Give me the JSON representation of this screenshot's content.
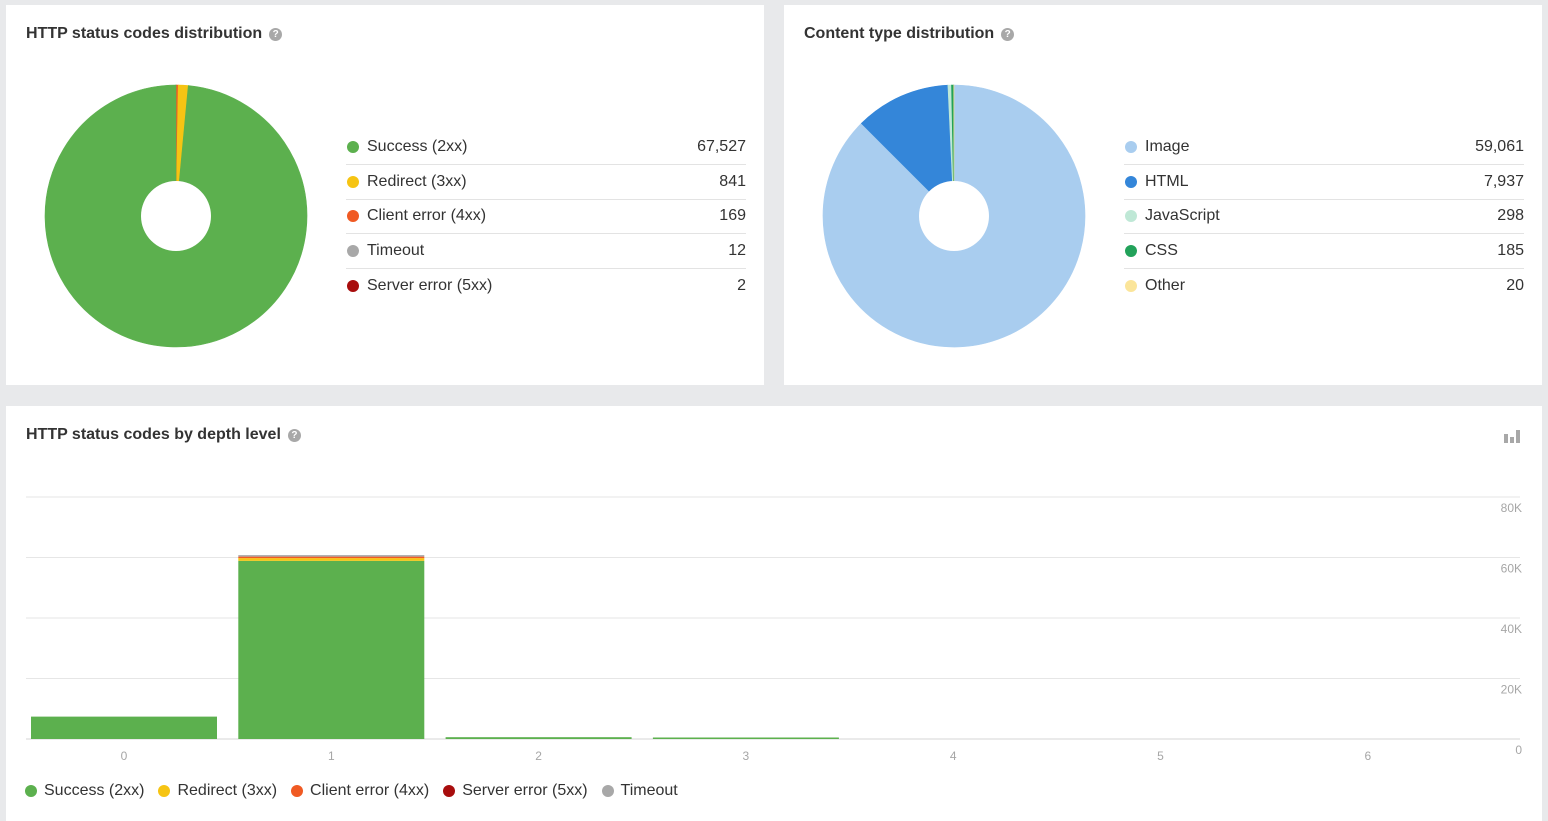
{
  "colors": {
    "success": "#5cb04e",
    "redirect": "#f6c413",
    "client_error": "#f05a23",
    "server_error": "#a80d0d",
    "timeout": "#a8a8a8",
    "image": "#a9cdef",
    "html": "#3486d9",
    "javascript": "#bfe8d6",
    "css": "#22a25a",
    "other": "#fbe59a"
  },
  "http_card": {
    "title": "HTTP status codes distribution",
    "help_icon": "?",
    "legend": [
      {
        "label": "Success (2xx)",
        "value": "67,527",
        "color_key": "success"
      },
      {
        "label": "Redirect (3xx)",
        "value": "841",
        "color_key": "redirect"
      },
      {
        "label": "Client error (4xx)",
        "value": "169",
        "color_key": "client_error"
      },
      {
        "label": "Timeout",
        "value": "12",
        "color_key": "timeout"
      },
      {
        "label": "Server error (5xx)",
        "value": "2",
        "color_key": "server_error"
      }
    ]
  },
  "content_card": {
    "title": "Content type distribution",
    "help_icon": "?",
    "legend": [
      {
        "label": "Image",
        "value": "59,061",
        "color_key": "image"
      },
      {
        "label": "HTML",
        "value": "7,937",
        "color_key": "html"
      },
      {
        "label": "JavaScript",
        "value": "298",
        "color_key": "javascript"
      },
      {
        "label": "CSS",
        "value": "185",
        "color_key": "css"
      },
      {
        "label": "Other",
        "value": "20",
        "color_key": "other"
      }
    ]
  },
  "depth_card": {
    "title": "HTTP status codes by depth level",
    "help_icon": "?",
    "chart_type_icon": "bar-chart-icon",
    "legend": [
      {
        "label": "Success (2xx)",
        "color_key": "success"
      },
      {
        "label": "Redirect (3xx)",
        "color_key": "redirect"
      },
      {
        "label": "Client error (4xx)",
        "color_key": "client_error"
      },
      {
        "label": "Server error (5xx)",
        "color_key": "server_error"
      },
      {
        "label": "Timeout",
        "color_key": "timeout"
      }
    ]
  },
  "chart_data": [
    {
      "type": "pie",
      "title": "HTTP status codes distribution",
      "categories": [
        "Success (2xx)",
        "Redirect (3xx)",
        "Client error (4xx)",
        "Timeout",
        "Server error (5xx)"
      ],
      "values": [
        67527,
        841,
        169,
        12,
        2
      ],
      "slice_order": [
        4,
        3,
        2,
        1,
        0
      ],
      "donut": true,
      "legend": "right"
    },
    {
      "type": "pie",
      "title": "Content type distribution",
      "categories": [
        "Image",
        "HTML",
        "JavaScript",
        "CSS",
        "Other"
      ],
      "values": [
        59061,
        7937,
        298,
        185,
        20
      ],
      "slice_order": [
        0,
        1,
        2,
        3,
        4
      ],
      "donut": true,
      "legend": "right"
    },
    {
      "type": "bar",
      "stacked": true,
      "title": "HTTP status codes by depth level",
      "categories": [
        "0",
        "1",
        "2",
        "3",
        "4",
        "5",
        "6"
      ],
      "y_ticks": [
        "0",
        "20K",
        "40K",
        "60K",
        "80K"
      ],
      "ylim": [
        0,
        80000
      ],
      "grid": true,
      "legend": "bottom",
      "series": [
        {
          "name": "Success (2xx)",
          "color_key": "success",
          "values": [
            7400,
            58900,
            600,
            250,
            0,
            0,
            0
          ]
        },
        {
          "name": "Redirect (3xx)",
          "color_key": "redirect",
          "values": [
            0,
            900,
            0,
            0,
            0,
            0,
            0
          ]
        },
        {
          "name": "Client error (4xx)",
          "color_key": "client_error",
          "values": [
            0,
            150,
            0,
            0,
            0,
            0,
            0
          ]
        },
        {
          "name": "Server error (5xx)",
          "color_key": "server_error",
          "values": [
            0,
            0,
            0,
            0,
            0,
            0,
            0
          ]
        },
        {
          "name": "Timeout",
          "color_key": "timeout",
          "values": [
            0,
            10,
            0,
            0,
            0,
            0,
            0
          ]
        }
      ]
    }
  ]
}
